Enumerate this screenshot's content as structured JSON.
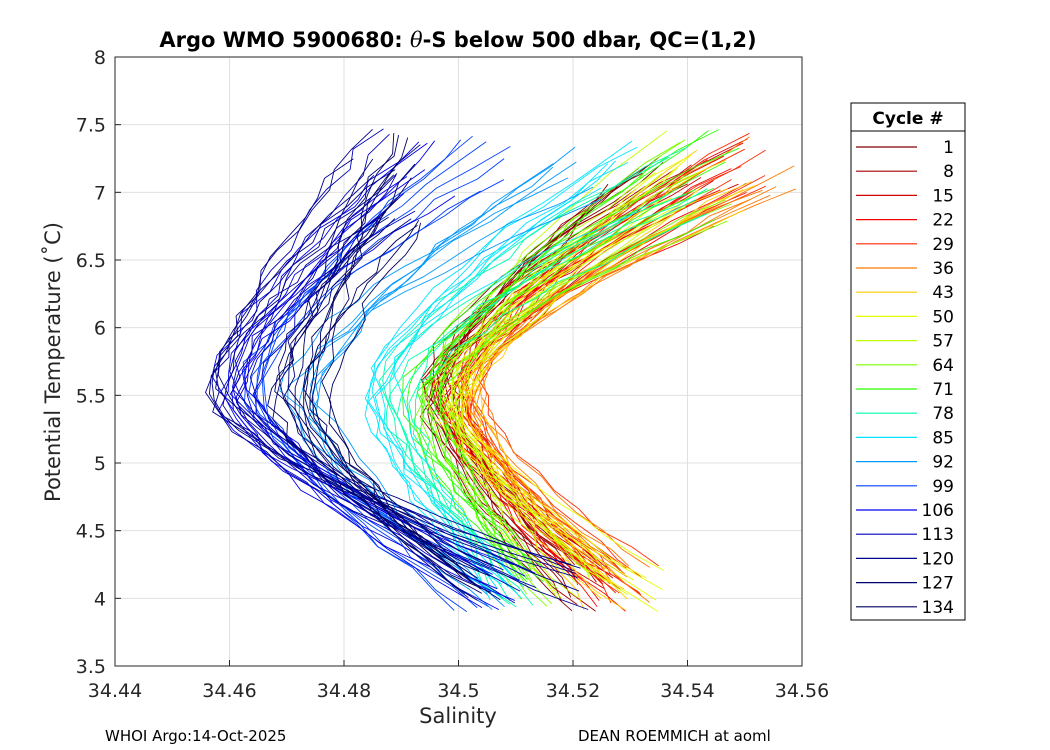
{
  "chart_data": {
    "type": "line",
    "title": {
      "prefix": "Argo WMO 5900680: ",
      "theta": "θ",
      "suffix": "-S below 500 dbar,  QC=(1,2)"
    },
    "xlabel": "Salinity",
    "ylabel": "Potential Temperature (˚C)",
    "xlim": [
      34.44,
      34.56
    ],
    "ylim": [
      3.5,
      8
    ],
    "xticks": [
      34.44,
      34.46,
      34.48,
      34.5,
      34.52,
      34.54,
      34.56
    ],
    "xtick_labels": [
      "34.44",
      "34.46",
      "34.48",
      "34.5",
      "34.52",
      "34.54",
      "34.56"
    ],
    "yticks": [
      3.5,
      4,
      4.5,
      5,
      5.5,
      6,
      6.5,
      7,
      7.5,
      8
    ],
    "ytick_labels": [
      "3.5",
      "4",
      "4.5",
      "5",
      "5.5",
      "6",
      "6.5",
      "7",
      "7.5",
      "8"
    ],
    "grid": true,
    "legend": {
      "title": "Cycle #",
      "placement": "right, outside plot",
      "entries": [
        {
          "label": "1",
          "color": "#800000"
        },
        {
          "label": "8",
          "color": "#a80000"
        },
        {
          "label": "15",
          "color": "#d10000"
        },
        {
          "label": "22",
          "color": "#f90000"
        },
        {
          "label": "29",
          "color": "#ff2900"
        },
        {
          "label": "36",
          "color": "#ff7a00"
        },
        {
          "label": "43",
          "color": "#ffcc00"
        },
        {
          "label": "50",
          "color": "#e6ff00"
        },
        {
          "label": "57",
          "color": "#bfff00"
        },
        {
          "label": "64",
          "color": "#7aff00"
        },
        {
          "label": "71",
          "color": "#2dff00"
        },
        {
          "label": "78",
          "color": "#00ffb0"
        },
        {
          "label": "85",
          "color": "#00e6ff"
        },
        {
          "label": "92",
          "color": "#0099ff"
        },
        {
          "label": "99",
          "color": "#0040ff"
        },
        {
          "label": "106",
          "color": "#0000f0"
        },
        {
          "label": "113",
          "color": "#0000c0"
        },
        {
          "label": "120",
          "color": "#00008c"
        },
        {
          "label": "127",
          "color": "#000070"
        },
        {
          "label": "134",
          "color": "#000060"
        }
      ]
    },
    "series_shape": "each cycle: theta-S curve with salinity minimum near 5.5 C, rising to upper right and lower right",
    "series": [
      {
        "name": "1",
        "color": "#800000",
        "s_min": 34.496,
        "s_top": 34.531,
        "s_bot": 34.519
      },
      {
        "name": "8",
        "color": "#a80000",
        "s_min": 34.497,
        "s_top": 34.535,
        "s_bot": 34.522
      },
      {
        "name": "15",
        "color": "#d10000",
        "s_min": 34.498,
        "s_top": 34.545,
        "s_bot": 34.526
      },
      {
        "name": "22",
        "color": "#f90000",
        "s_min": 34.499,
        "s_top": 34.549,
        "s_bot": 34.528
      },
      {
        "name": "29",
        "color": "#ff2900",
        "s_min": 34.501,
        "s_top": 34.552,
        "s_bot": 34.531
      },
      {
        "name": "36",
        "color": "#ff7a00",
        "s_min": 34.503,
        "s_top": 34.555,
        "s_bot": 34.53
      },
      {
        "name": "43",
        "color": "#ffcc00",
        "s_min": 34.5,
        "s_top": 34.546,
        "s_bot": 34.527
      },
      {
        "name": "50",
        "color": "#e6ff00",
        "s_min": 34.499,
        "s_top": 34.54,
        "s_bot": 34.532
      },
      {
        "name": "57",
        "color": "#bfff00",
        "s_min": 34.497,
        "s_top": 34.538,
        "s_bot": 34.521
      },
      {
        "name": "64",
        "color": "#7aff00",
        "s_min": 34.495,
        "s_top": 34.543,
        "s_bot": 34.515
      },
      {
        "name": "71",
        "color": "#2dff00",
        "s_min": 34.493,
        "s_top": 34.545,
        "s_bot": 34.512
      },
      {
        "name": "78",
        "color": "#00ffb0",
        "s_min": 34.489,
        "s_top": 34.54,
        "s_bot": 34.51
      },
      {
        "name": "85",
        "color": "#00e6ff",
        "s_min": 34.486,
        "s_top": 34.53,
        "s_bot": 34.508
      },
      {
        "name": "92",
        "color": "#0099ff",
        "s_min": 34.472,
        "s_top": 34.52,
        "s_bot": 34.506
      },
      {
        "name": "99",
        "color": "#0040ff",
        "s_min": 34.465,
        "s_top": 34.505,
        "s_bot": 34.503
      },
      {
        "name": "106",
        "color": "#0000f0",
        "s_min": 34.46,
        "s_top": 34.495,
        "s_bot": 34.508
      },
      {
        "name": "113",
        "color": "#0000c0",
        "s_min": 34.462,
        "s_top": 34.49,
        "s_bot": 34.511
      },
      {
        "name": "120",
        "color": "#00008c",
        "s_min": 34.456,
        "s_top": 34.485,
        "s_bot": 34.519
      },
      {
        "name": "127",
        "color": "#000070",
        "s_min": 34.47,
        "s_top": 34.488,
        "s_bot": 34.505
      },
      {
        "name": "134",
        "color": "#000060",
        "s_min": 34.475,
        "s_top": 34.49,
        "s_bot": 34.503
      }
    ]
  },
  "footer": {
    "left": "WHOI Argo:14-Oct-2025",
    "right": "DEAN ROEMMICH at aoml"
  }
}
